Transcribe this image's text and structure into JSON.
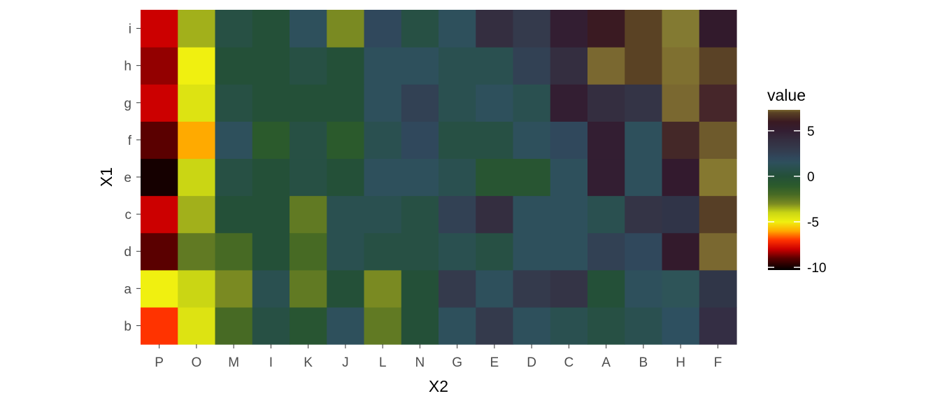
{
  "chart_data": {
    "type": "heatmap",
    "xlabel": "X2",
    "ylabel": "X1",
    "x_categories": [
      "P",
      "O",
      "M",
      "I",
      "K",
      "J",
      "L",
      "N",
      "G",
      "E",
      "D",
      "C",
      "A",
      "B",
      "H",
      "F"
    ],
    "y_categories": [
      "b",
      "a",
      "d",
      "c",
      "e",
      "f",
      "g",
      "h",
      "i"
    ],
    "values": {
      "i": [
        -8,
        -3.5,
        0.5,
        0,
        1.5,
        -3,
        2,
        0.5,
        1.5,
        4,
        3,
        5,
        6,
        7,
        5.5,
        6
      ],
      "h": [
        -8.5,
        -5,
        0,
        0,
        0.5,
        0,
        1.5,
        1.5,
        1,
        1,
        2.5,
        4,
        7.5,
        7,
        6,
        6.5
      ],
      "g": [
        -8,
        -4.5,
        0.5,
        0,
        0,
        0,
        1.5,
        2.5,
        1,
        1.5,
        1,
        5,
        4,
        3.5,
        6.5,
        7
      ],
      "f": [
        -9,
        -6,
        1.5,
        -1,
        0.5,
        -1,
        1,
        2,
        0.5,
        0.5,
        1.5,
        2,
        5,
        1.5,
        7,
        7
      ],
      "e": [
        -10,
        -4,
        0.5,
        0,
        0.5,
        0,
        1.5,
        1.5,
        1,
        -0.5,
        -0.5,
        1.5,
        5,
        1.5,
        5.5,
        6
      ],
      "c": [
        -8,
        -3.5,
        0,
        0,
        -2.5,
        1,
        1,
        0.5,
        2.5,
        4,
        1.5,
        1.5,
        1,
        3.5,
        3.5,
        7
      ],
      "d": [
        -9,
        -2.5,
        -2,
        0,
        -2,
        1,
        0.5,
        0.5,
        1,
        0.5,
        1.5,
        1.5,
        2.5,
        2,
        5,
        6.5
      ],
      "a": [
        -5,
        -4,
        -3,
        1,
        -2.5,
        0,
        -3,
        0,
        3,
        1.5,
        3,
        3.5,
        0,
        1.5,
        1,
        3
      ],
      "b": [
        -7,
        -4.5,
        -2,
        0.5,
        -0.5,
        1.5,
        -2.5,
        0,
        1.5,
        3,
        1.5,
        1,
        0.5,
        1,
        1.5,
        4
      ]
    },
    "colorbar": {
      "title": "value",
      "ticks": [
        5,
        0,
        -5,
        -10
      ],
      "range": [
        -10.3,
        7.3
      ],
      "stops": [
        {
          "v": -10.3,
          "c": "#000000"
        },
        {
          "v": -9,
          "c": "#5a0000"
        },
        {
          "v": -8,
          "c": "#cc0000"
        },
        {
          "v": -7,
          "c": "#ff3300"
        },
        {
          "v": -6,
          "c": "#ffaa00"
        },
        {
          "v": -5,
          "c": "#f0f010"
        },
        {
          "v": -4,
          "c": "#cad614"
        },
        {
          "v": -3,
          "c": "#7a8a22"
        },
        {
          "v": -2,
          "c": "#476a24"
        },
        {
          "v": -1,
          "c": "#2b5a2c"
        },
        {
          "v": 0,
          "c": "#245038"
        },
        {
          "v": 1,
          "c": "#2a5050"
        },
        {
          "v": 1.5,
          "c": "#2e505c"
        },
        {
          "v": 2,
          "c": "#30485c"
        },
        {
          "v": 3,
          "c": "#343a4c"
        },
        {
          "v": 4,
          "c": "#342e40"
        },
        {
          "v": 5,
          "c": "#331e32"
        },
        {
          "v": 6,
          "c": "#3a1a22"
        },
        {
          "v": 7,
          "c": "#5a4224"
        },
        {
          "v": 7.3,
          "c": "#7a6830"
        }
      ]
    },
    "overrides": {
      "H": {
        "i": "#837a32",
        "h": "#7f7030",
        "g": "#7a6830",
        "a": "#2e5458",
        "b": "#2e5060",
        "c": "#303448",
        "d": "#331a2c",
        "e": "#331a2e",
        "f": "#442828"
      },
      "F": {
        "d": "#7a6830",
        "e": "#857830",
        "f": "#6e5a2c",
        "c": "#573f26",
        "h": "#5a4226",
        "g": "#46262a",
        "i": "#321a2c",
        "a": "#303648",
        "b": "#342e44"
      }
    }
  }
}
